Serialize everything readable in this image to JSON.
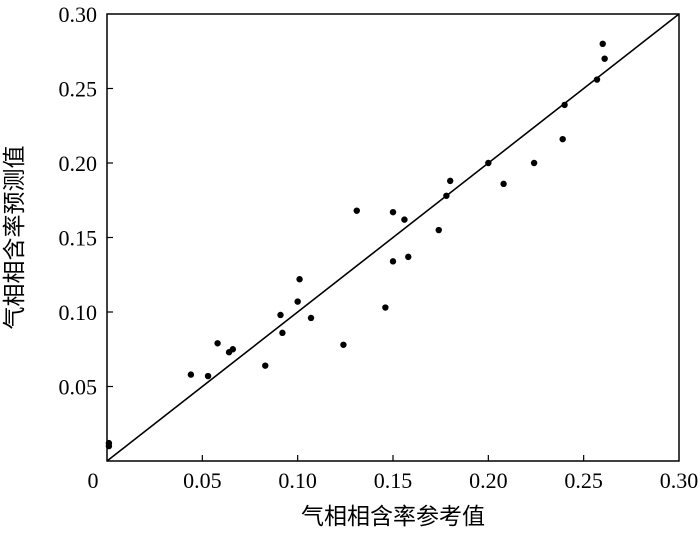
{
  "chart_data": {
    "type": "scatter",
    "title": "",
    "xlabel": "气相相含率参考值",
    "ylabel": "气相相含率预测值",
    "xlim": [
      0,
      0.3
    ],
    "ylim": [
      0,
      0.3
    ],
    "x_ticks": [
      "0",
      "0.05",
      "0.10",
      "0.15",
      "0.20",
      "0.25",
      "0.30"
    ],
    "y_ticks": [
      "0.05",
      "0.10",
      "0.15",
      "0.20",
      "0.25",
      "0.30"
    ],
    "grid": false,
    "legend": "none",
    "reference_line": {
      "type": "y=x",
      "from": [
        0,
        0
      ],
      "to": [
        0.3,
        0.3
      ]
    },
    "series": [
      {
        "points": [
          [
            0.001,
            0.012
          ],
          [
            0.001,
            0.01
          ],
          [
            0.044,
            0.058
          ],
          [
            0.053,
            0.057
          ],
          [
            0.058,
            0.079
          ],
          [
            0.064,
            0.073
          ],
          [
            0.066,
            0.075
          ],
          [
            0.083,
            0.064
          ],
          [
            0.091,
            0.098
          ],
          [
            0.092,
            0.086
          ],
          [
            0.1,
            0.107
          ],
          [
            0.101,
            0.122
          ],
          [
            0.107,
            0.096
          ],
          [
            0.124,
            0.078
          ],
          [
            0.131,
            0.168
          ],
          [
            0.146,
            0.103
          ],
          [
            0.15,
            0.167
          ],
          [
            0.15,
            0.134
          ],
          [
            0.156,
            0.162
          ],
          [
            0.158,
            0.137
          ],
          [
            0.174,
            0.155
          ],
          [
            0.178,
            0.178
          ],
          [
            0.18,
            0.188
          ],
          [
            0.2,
            0.2
          ],
          [
            0.208,
            0.186
          ],
          [
            0.224,
            0.2
          ],
          [
            0.239,
            0.216
          ],
          [
            0.24,
            0.239
          ],
          [
            0.257,
            0.256
          ],
          [
            0.26,
            0.28
          ],
          [
            0.261,
            0.27
          ]
        ]
      }
    ]
  }
}
